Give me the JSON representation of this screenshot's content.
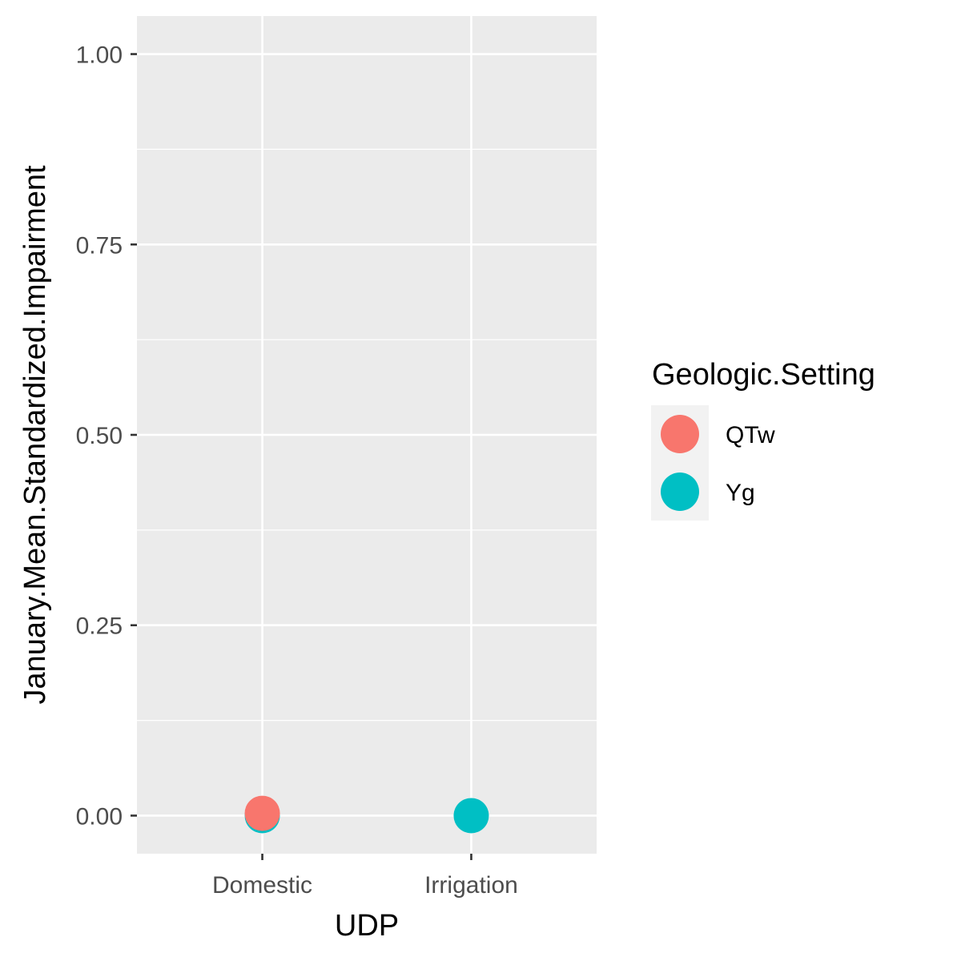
{
  "chart_data": {
    "type": "scatter",
    "xlabel": "UDP",
    "ylabel": "January.Mean.Standardized.Impairment",
    "categories": [
      "Domestic",
      "Irrigation"
    ],
    "ylim": [
      -0.05,
      1.05
    ],
    "yticks": [
      0,
      0.25,
      0.5,
      0.75,
      1
    ],
    "ytick_labels": [
      "0.00",
      "0.25",
      "0.50",
      "0.75",
      "1.00"
    ],
    "grid": true,
    "legend": {
      "title": "Geologic.Setting",
      "position": "right",
      "entries": [
        {
          "label": "QTw",
          "color": "#F8766D"
        },
        {
          "label": "Yg",
          "color": "#00BFC4"
        }
      ]
    },
    "series": [
      {
        "name": "QTw",
        "color": "#F8766D",
        "points": [
          {
            "x": "Domestic",
            "y": 0.003
          }
        ]
      },
      {
        "name": "Yg",
        "color": "#00BFC4",
        "points": [
          {
            "x": "Domestic",
            "y": 0.0
          },
          {
            "x": "Irrigation",
            "y": 0.0
          }
        ]
      }
    ]
  }
}
